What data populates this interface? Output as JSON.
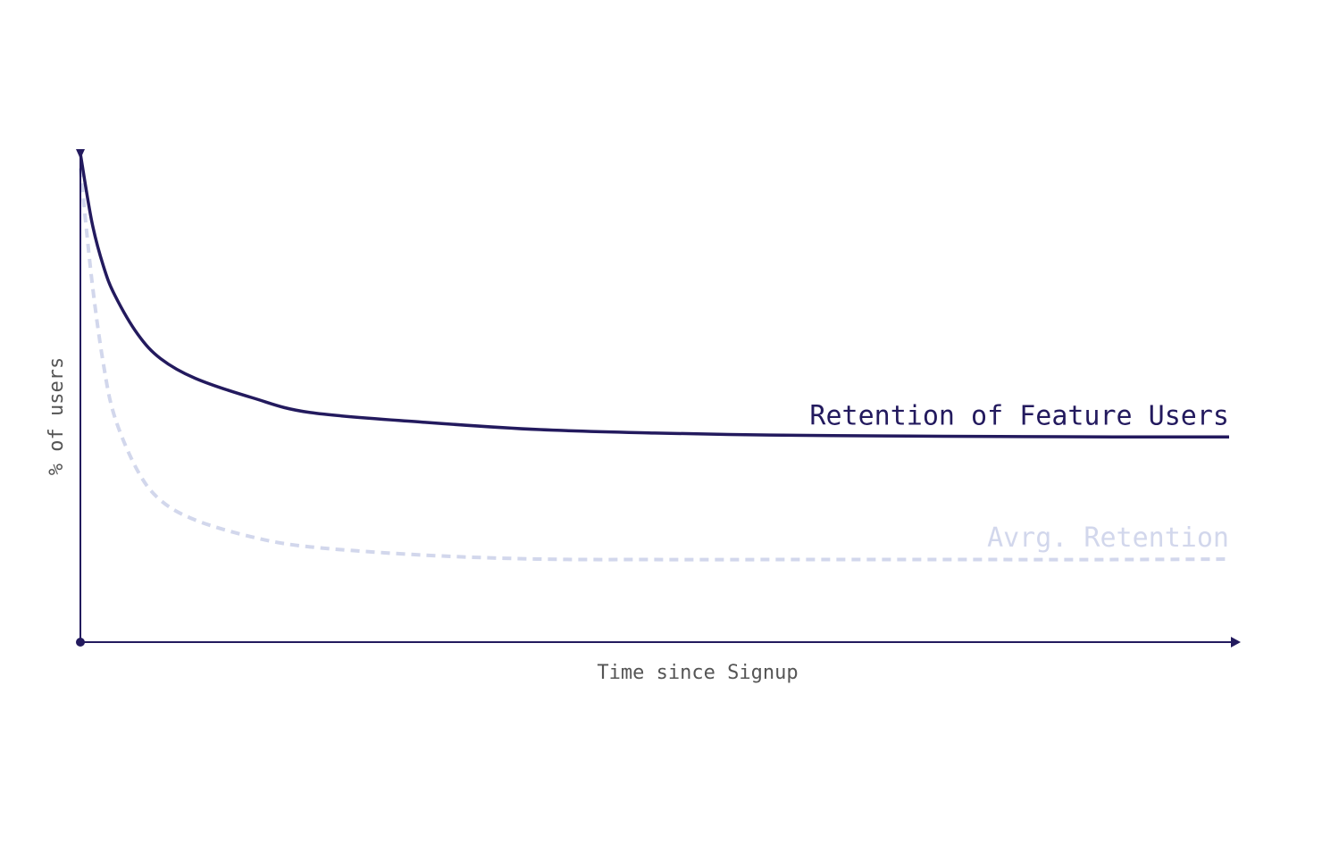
{
  "chart_data": {
    "type": "line",
    "title": "",
    "xlabel": "Time since Signup",
    "ylabel": "% of users",
    "xlim": [
      0,
      100
    ],
    "ylim": [
      0,
      100
    ],
    "grid": false,
    "legend": "inline",
    "axis_color": "#231a5e",
    "x": [
      0,
      1,
      2,
      3,
      5,
      7,
      10,
      15,
      20,
      30,
      40,
      50,
      60,
      70,
      80,
      90,
      100
    ],
    "series": [
      {
        "name": "Retention of Feature Users",
        "color": "#231a5e",
        "style": "solid",
        "values": [
          100,
          86,
          77,
          71,
          63,
          58,
          54,
          50,
          47,
          45,
          43.5,
          42.8,
          42.4,
          42.2,
          42.1,
          42,
          42
        ]
      },
      {
        "name": "Avrg. Retention",
        "color": "#d2d7ec",
        "style": "dashed",
        "values": [
          97,
          74,
          57,
          46,
          35,
          29,
          25,
          21.5,
          19.5,
          17.8,
          17,
          16.9,
          16.9,
          16.9,
          16.9,
          16.9,
          17
        ]
      }
    ]
  }
}
